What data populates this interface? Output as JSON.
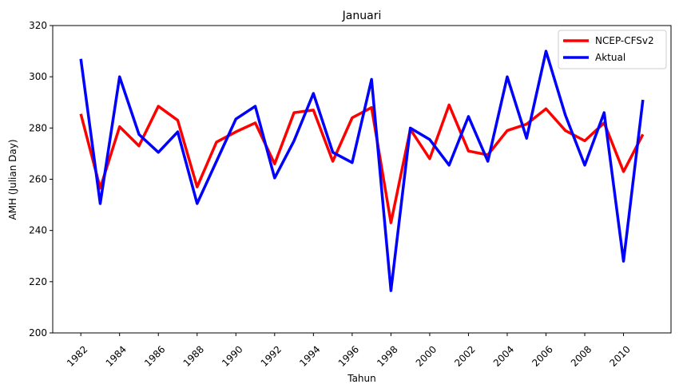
{
  "chart_data": {
    "type": "line",
    "title": "Januari",
    "xlabel": "Tahun",
    "ylabel": "AMH (Julian Day)",
    "xlim": [
      1980.55,
      2012.45
    ],
    "ylim": [
      200,
      320
    ],
    "xticks": [
      1982,
      1984,
      1986,
      1988,
      1990,
      1992,
      1994,
      1996,
      1998,
      2000,
      2002,
      2004,
      2006,
      2008,
      2010
    ],
    "yticks": [
      200,
      220,
      240,
      260,
      280,
      300,
      320
    ],
    "grid": false,
    "legend_position": "top-right",
    "x": [
      1982,
      1983,
      1984,
      1985,
      1986,
      1987,
      1988,
      1989,
      1990,
      1991,
      1992,
      1993,
      1994,
      1995,
      1996,
      1997,
      1998,
      1999,
      2000,
      2001,
      2002,
      2003,
      2004,
      2005,
      2006,
      2007,
      2008,
      2009,
      2010,
      2011
    ],
    "series": [
      {
        "name": "NCEP-CFSv2",
        "color": "#ff0000",
        "values": [
          285.5,
          256.5,
          280.5,
          273.0,
          288.5,
          283.0,
          257.0,
          274.5,
          278.5,
          282.0,
          266.0,
          286.0,
          287.0,
          267.0,
          284.0,
          288.0,
          243.0,
          279.5,
          268.0,
          289.0,
          271.0,
          269.5,
          279.0,
          281.5,
          287.5,
          279.0,
          275.0,
          282.0,
          263.0,
          277.5
        ]
      },
      {
        "name": "Aktual",
        "color": "#0000ff",
        "values": [
          307.0,
          250.5,
          300.0,
          277.5,
          270.5,
          278.5,
          250.5,
          267.0,
          283.5,
          288.5,
          260.5,
          275.0,
          293.5,
          270.5,
          266.5,
          299.0,
          216.5,
          280.0,
          275.5,
          265.5,
          284.5,
          267.0,
          300.0,
          276.0,
          310.0,
          285.0,
          265.5,
          286.0,
          228.0,
          291.0
        ]
      }
    ]
  }
}
